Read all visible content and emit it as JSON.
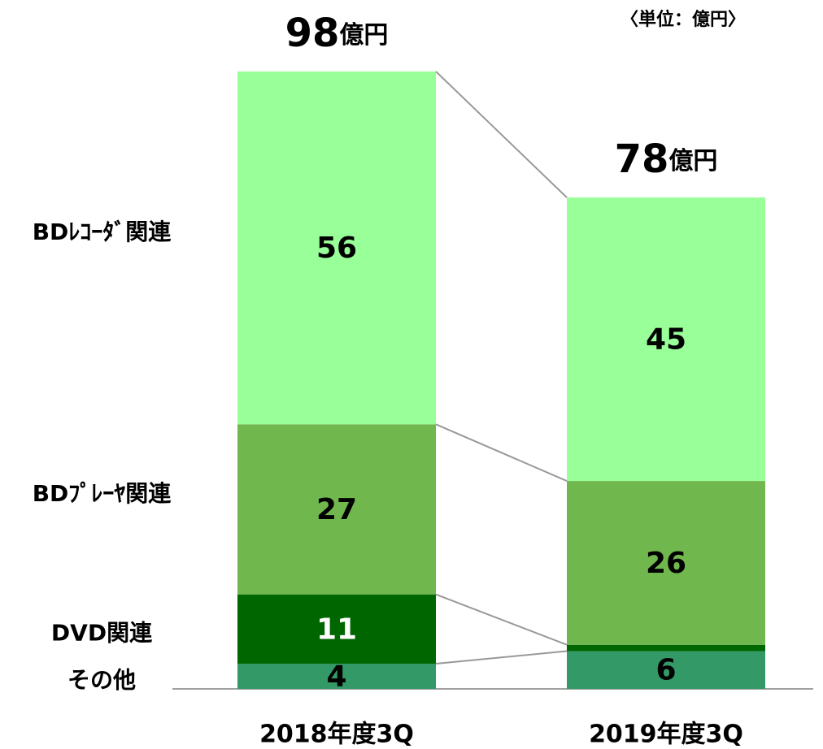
{
  "chart_data": {
    "type": "bar",
    "stacked": true,
    "unit_note": "〈単位：億円〉",
    "categories": [
      "2018年度3Q",
      "2019年度3Q"
    ],
    "series": [
      {
        "name": "その他",
        "color": "#339966",
        "label_color": "#000000",
        "values": [
          4,
          6
        ]
      },
      {
        "name": "DVD関連",
        "color": "#006600",
        "label_color": "#ffffff",
        "values": [
          11,
          1
        ]
      },
      {
        "name": "BDﾌﾟﾚｰﾔ関連",
        "color": "#70b84e",
        "label_color": "#000000",
        "values": [
          27,
          26
        ]
      },
      {
        "name": "BDﾚｺｰﾀﾞ関連",
        "color": "#99ff99",
        "label_color": "#000000",
        "values": [
          56,
          45
        ]
      }
    ],
    "totals": [
      98,
      78
    ],
    "total_unit": "億円"
  }
}
